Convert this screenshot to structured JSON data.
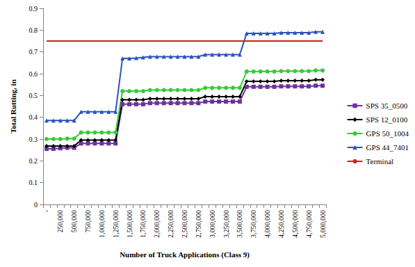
{
  "chart_data": {
    "type": "line",
    "x_label": "Number of Truck Applications (Class 9)",
    "y_label": "Total Rutting, in",
    "categories": [
      "-",
      null,
      "250,000",
      null,
      "500,000",
      null,
      "750,000",
      null,
      "1,000,000",
      null,
      "1,250,000",
      null,
      "1,500,000",
      null,
      "1,750,000",
      null,
      "2,000,000",
      null,
      "2,250,000",
      null,
      "2,500,000",
      null,
      "2,750,000",
      null,
      "3,000,000",
      null,
      "3,250,000",
      null,
      "3,500,000",
      null,
      "3,750,000",
      null,
      "4,000,000",
      null,
      "4,250,000",
      null,
      "4,500,000",
      null,
      "4,750,000",
      null,
      "5,000,000"
    ],
    "series": [
      {
        "name": "SPS 35_0500",
        "color": "#7030A0",
        "marker": "square",
        "line_style": "solid",
        "values": [
          0.255,
          0.255,
          0.258,
          0.26,
          0.26,
          0.28,
          0.28,
          0.28,
          0.28,
          0.28,
          0.28,
          0.46,
          0.46,
          0.46,
          0.46,
          0.465,
          0.465,
          0.465,
          0.465,
          0.465,
          0.465,
          0.465,
          0.465,
          0.472,
          0.472,
          0.472,
          0.472,
          0.472,
          0.472,
          0.54,
          0.54,
          0.54,
          0.54,
          0.54,
          0.542,
          0.542,
          0.542,
          0.542,
          0.542,
          0.545,
          0.545
        ]
      },
      {
        "name": "SPS 12_0100",
        "color": "#000000",
        "marker": "diamond",
        "line_style": "solid",
        "values": [
          0.268,
          0.268,
          0.268,
          0.268,
          0.268,
          0.295,
          0.295,
          0.295,
          0.295,
          0.295,
          0.295,
          0.48,
          0.48,
          0.48,
          0.48,
          0.485,
          0.485,
          0.485,
          0.485,
          0.485,
          0.485,
          0.485,
          0.485,
          0.495,
          0.495,
          0.495,
          0.495,
          0.495,
          0.495,
          0.565,
          0.565,
          0.565,
          0.565,
          0.565,
          0.568,
          0.568,
          0.568,
          0.568,
          0.568,
          0.572,
          0.572
        ]
      },
      {
        "name": "GPS 50_1004",
        "color": "#33CC33",
        "marker": "circle",
        "line_style": "solid",
        "values": [
          0.3,
          0.3,
          0.3,
          0.302,
          0.302,
          0.33,
          0.33,
          0.33,
          0.33,
          0.33,
          0.33,
          0.52,
          0.52,
          0.52,
          0.52,
          0.525,
          0.525,
          0.525,
          0.525,
          0.525,
          0.525,
          0.525,
          0.525,
          0.535,
          0.535,
          0.535,
          0.535,
          0.535,
          0.535,
          0.61,
          0.61,
          0.61,
          0.61,
          0.61,
          0.612,
          0.612,
          0.612,
          0.612,
          0.612,
          0.615,
          0.615
        ]
      },
      {
        "name": "GPS 44_7401",
        "color": "#2A52BE",
        "marker": "triangle",
        "line_style": "solid",
        "values": [
          0.385,
          0.385,
          0.385,
          0.385,
          0.385,
          0.425,
          0.425,
          0.425,
          0.425,
          0.425,
          0.425,
          0.67,
          0.67,
          0.672,
          0.675,
          0.678,
          0.678,
          0.678,
          0.678,
          0.678,
          0.678,
          0.678,
          0.678,
          0.688,
          0.688,
          0.688,
          0.688,
          0.688,
          0.688,
          0.785,
          0.785,
          0.785,
          0.785,
          0.785,
          0.788,
          0.788,
          0.788,
          0.788,
          0.788,
          0.792,
          0.792
        ]
      },
      {
        "name": "Terminal",
        "color": "#D02020",
        "marker": "none",
        "line_style": "solid",
        "values": [
          0.75,
          0.75,
          0.75,
          0.75,
          0.75,
          0.75,
          0.75,
          0.75,
          0.75,
          0.75,
          0.75,
          0.75,
          0.75,
          0.75,
          0.75,
          0.75,
          0.75,
          0.75,
          0.75,
          0.75,
          0.75,
          0.75,
          0.75,
          0.75,
          0.75,
          0.75,
          0.75,
          0.75,
          0.75,
          0.75,
          0.75,
          0.75,
          0.75,
          0.75,
          0.75,
          0.75,
          0.75,
          0.75,
          0.75,
          0.75,
          0.75
        ]
      }
    ],
    "ylim": [
      0,
      0.9
    ],
    "yticks": [
      0,
      0.1,
      0.2,
      0.3,
      0.4,
      0.5,
      0.6,
      0.7,
      0.8,
      0.9
    ],
    "grid": false,
    "legend": "right"
  }
}
